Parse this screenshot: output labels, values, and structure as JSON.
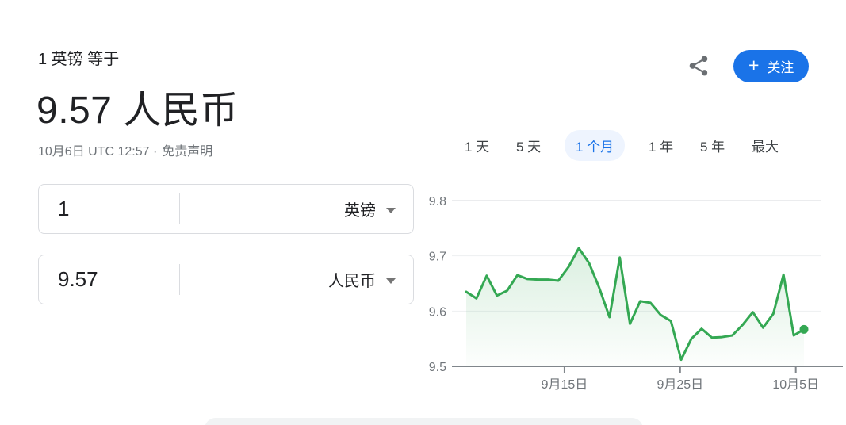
{
  "header": {
    "equals_label": "1 英镑 等于",
    "value": "9.57 人民币",
    "timestamp": "10月6日 UTC 12:57 ·",
    "disclaimer": "免责声明"
  },
  "actions": {
    "follow": {
      "plus": "+",
      "label": "关注"
    }
  },
  "converter": {
    "from": {
      "amount": "1",
      "currency": "英镑"
    },
    "to": {
      "amount": "9.57",
      "currency": "人民币"
    }
  },
  "range_tabs": {
    "items": [
      {
        "label": "1 天",
        "selected": false
      },
      {
        "label": "5 天",
        "selected": false
      },
      {
        "label": "1 个月",
        "selected": true
      },
      {
        "label": "1 年",
        "selected": false
      },
      {
        "label": "5 年",
        "selected": false
      },
      {
        "label": "最大",
        "selected": false
      }
    ]
  },
  "chart_data": {
    "type": "line",
    "values": [
      9.635,
      9.623,
      9.664,
      9.628,
      9.637,
      9.665,
      9.658,
      9.657,
      9.657,
      9.655,
      9.68,
      9.714,
      9.687,
      9.642,
      9.589,
      9.697,
      9.577,
      9.618,
      9.615,
      9.593,
      9.582,
      9.512,
      9.55,
      9.568,
      9.552,
      9.553,
      9.556,
      9.575,
      9.598,
      9.57,
      9.595,
      9.666,
      9.556,
      9.567
    ],
    "last_value": 9.567,
    "ylim": [
      9.5,
      9.8
    ],
    "yticks": [
      9.5,
      9.6,
      9.7,
      9.8
    ],
    "x_ticks": [
      {
        "label": "9月15日",
        "pos": 9.6
      },
      {
        "label": "9月25日",
        "pos": 20.9
      },
      {
        "label": "10月5日",
        "pos": 32.2
      }
    ],
    "grid": true,
    "legend": false,
    "end_dot": true,
    "colors": {
      "line": "#34a853",
      "area_top": "rgba(52,168,83,0.18)",
      "area_bottom": "rgba(52,168,83,0.01)",
      "axis": "#80868b",
      "grid_top": "#d7dadd",
      "grid_minor": "#edeff1",
      "tick_label": "#70757a"
    }
  },
  "accent": {
    "blue": "#1a73e8",
    "selected_tab_bg": "#eef4fe"
  }
}
